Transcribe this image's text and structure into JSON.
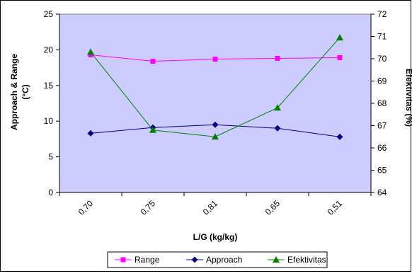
{
  "chart_data": {
    "type": "line",
    "categories": [
      "0,70",
      "0,75",
      "0,81",
      "0,65",
      "0,51"
    ],
    "xlabel": "L/G (kg/kg)",
    "ylabel_left": [
      "Approach & Range",
      "(°C)"
    ],
    "ylabel_right": "Efektivitas (%)",
    "ylim_left": [
      0,
      25
    ],
    "yticks_left": [
      "0",
      "5",
      "10",
      "15",
      "20",
      "25"
    ],
    "ylim_right": [
      64,
      72
    ],
    "yticks_right": [
      "64",
      "65",
      "66",
      "67",
      "68",
      "69",
      "70",
      "71",
      "72"
    ],
    "grid": false,
    "legend_position": "bottom",
    "plot_background": "#ccccff",
    "series": [
      {
        "name": "Range",
        "axis": "left",
        "color": "#ff00ff",
        "marker": "square",
        "values": [
          19.3,
          18.4,
          18.7,
          18.8,
          18.9
        ]
      },
      {
        "name": "Approach",
        "axis": "left",
        "color": "#000080",
        "marker": "diamond",
        "values": [
          8.3,
          9.1,
          9.5,
          9.0,
          7.8
        ]
      },
      {
        "name": "Efektivitas",
        "axis": "right",
        "color": "#008000",
        "marker": "triangle",
        "values": [
          70.3,
          66.8,
          66.5,
          67.8,
          70.95
        ]
      }
    ]
  }
}
